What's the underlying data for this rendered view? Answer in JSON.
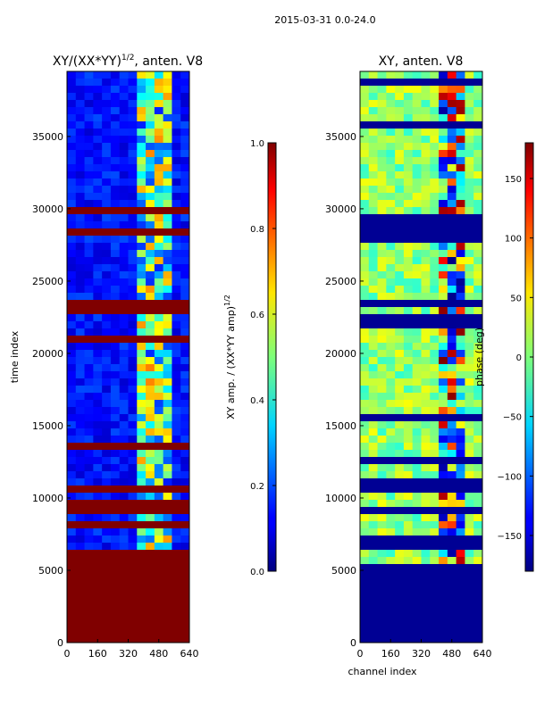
{
  "suptitle": "2015-03-31 0.0-24.0",
  "chart_data": [
    {
      "type": "heatmap",
      "title": "XY/(XX*YY)",
      "title_exponent": "1/2",
      "title_suffix": ", anten. V8",
      "xlabel": "",
      "ylabel": "time index",
      "xlim": [
        0,
        640
      ],
      "ylim": [
        0,
        39500
      ],
      "xticks": [
        "0",
        "160",
        "320",
        "480",
        "640"
      ],
      "yticks": [
        "0",
        "5000",
        "10000",
        "15000",
        "20000",
        "25000",
        "30000",
        "35000"
      ],
      "colorbar": {
        "label": "XY amp. / (XX*YY amp)",
        "label_exponent": "1/2",
        "range": [
          0.0,
          1.0
        ],
        "ticks": [
          "0.0",
          "0.2",
          "0.4",
          "0.6",
          "0.8",
          "1.0"
        ],
        "colormap": "jet"
      },
      "description_bands": [
        {
          "y": [
            0,
            6900
          ],
          "value": 1.0
        },
        {
          "y": [
            6900,
            39500
          ],
          "value": "mixed"
        }
      ]
    },
    {
      "type": "heatmap",
      "title": "XY, anten. V8",
      "xlabel": "channel index",
      "ylabel": "",
      "xlim": [
        0,
        640
      ],
      "ylim": [
        0,
        39500
      ],
      "xticks": [
        "0",
        "160",
        "320",
        "480",
        "640"
      ],
      "yticks": [
        "0",
        "5000",
        "10000",
        "15000",
        "20000",
        "25000",
        "30000",
        "35000"
      ],
      "colorbar": {
        "label": "phase (deg)",
        "range": [
          -180,
          180
        ],
        "ticks": [
          "−150",
          "−100",
          "−50",
          "0",
          "50",
          "100",
          "150"
        ],
        "colormap": "jet"
      }
    }
  ]
}
